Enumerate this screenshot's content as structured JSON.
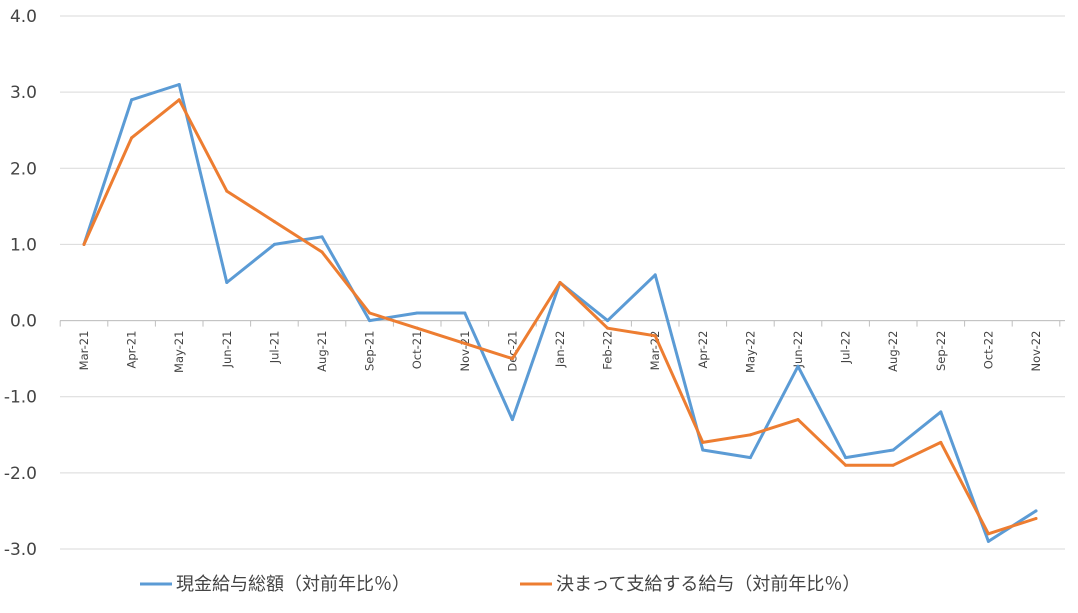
{
  "chart_data": {
    "type": "line",
    "title": "",
    "xlabel": "",
    "ylabel": "",
    "categories": [
      "Mar-21",
      "Apr-21",
      "May-21",
      "Jun-21",
      "Jul-21",
      "Aug-21",
      "Sep-21",
      "Oct-21",
      "Nov-21",
      "Dec-21",
      "Jan-22",
      "Feb-22",
      "Mar-22",
      "Apr-22",
      "May-22",
      "Jun-22",
      "Jul-22",
      "Aug-22",
      "Sep-22",
      "Oct-22",
      "Nov-22"
    ],
    "ylim": [
      -3.0,
      4.0
    ],
    "yticks": [
      "4.0",
      "3.0",
      "2.0",
      "1.0",
      "0.0",
      "-1.0",
      "-2.0",
      "-3.0"
    ],
    "grid": true,
    "legend_position": "bottom",
    "series": [
      {
        "name": "現金給与総額（対前年比％）",
        "color": "#5B9BD5",
        "values": [
          1.0,
          2.9,
          3.1,
          0.5,
          1.0,
          1.1,
          0.0,
          0.1,
          0.1,
          -1.3,
          0.5,
          0.0,
          0.6,
          -1.7,
          -1.8,
          -0.6,
          -1.8,
          -1.7,
          -1.2,
          -2.9,
          -2.5
        ]
      },
      {
        "name": "決まって支給する給与（対前年比％）",
        "color": "#ED7D31",
        "values": [
          1.0,
          2.4,
          2.9,
          1.7,
          1.3,
          0.9,
          0.1,
          -0.1,
          -0.3,
          -0.5,
          0.5,
          -0.1,
          -0.2,
          -1.6,
          -1.5,
          -1.3,
          -1.9,
          -1.9,
          -1.6,
          -2.8,
          -2.6
        ]
      }
    ]
  }
}
